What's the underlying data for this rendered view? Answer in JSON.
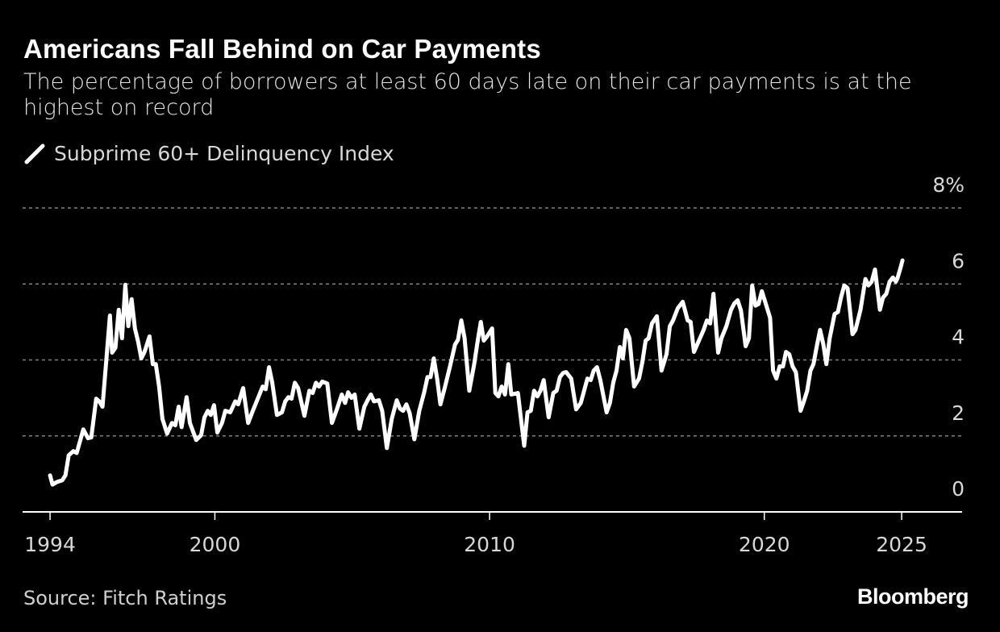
{
  "chart_data": {
    "type": "line",
    "title": "Americans Fall Behind on Car Payments",
    "subtitle": "The percentage of borrowers at least 60 days late on their car payments is at the highest on record",
    "source": "Source: Fitch Ratings",
    "logo": "Bloomberg",
    "xlabel": "",
    "ylabel": "",
    "xlim": [
      1993,
      2027.2
    ],
    "ylim": [
      0,
      8
    ],
    "x_ticks": [
      {
        "value": 1994,
        "label": "1994"
      },
      {
        "value": 2000,
        "label": "2000"
      },
      {
        "value": 2010,
        "label": "2010"
      },
      {
        "value": 2020,
        "label": "2020"
      },
      {
        "value": 2025,
        "label": "2025"
      }
    ],
    "y_ticks": [
      {
        "value": 0,
        "label": "0"
      },
      {
        "value": 2,
        "label": "2"
      },
      {
        "value": 4,
        "label": "4"
      },
      {
        "value": 6,
        "label": "6"
      },
      {
        "value": 8,
        "label": "8%"
      }
    ],
    "grid": true,
    "legend_placement": "top-left",
    "colors": {
      "background": "#000000",
      "line": "#ffffff",
      "grid": "#808080"
    },
    "series": [
      {
        "name": "Subprime 60+ Delinquency Index",
        "points": [
          [
            1994.0,
            0.96
          ],
          [
            1994.09,
            0.72
          ],
          [
            1994.26,
            0.79
          ],
          [
            1994.44,
            0.83
          ],
          [
            1994.56,
            0.96
          ],
          [
            1994.68,
            1.49
          ],
          [
            1994.85,
            1.6
          ],
          [
            1994.97,
            1.55
          ],
          [
            1995.21,
            2.17
          ],
          [
            1995.38,
            1.94
          ],
          [
            1995.5,
            1.96
          ],
          [
            1995.68,
            2.98
          ],
          [
            1995.79,
            2.91
          ],
          [
            1995.91,
            2.77
          ],
          [
            1996.03,
            3.83
          ],
          [
            1996.18,
            5.17
          ],
          [
            1996.26,
            4.19
          ],
          [
            1996.38,
            4.32
          ],
          [
            1996.5,
            5.32
          ],
          [
            1996.62,
            4.57
          ],
          [
            1996.74,
            5.98
          ],
          [
            1996.85,
            4.89
          ],
          [
            1996.97,
            5.6
          ],
          [
            1997.09,
            4.83
          ],
          [
            1997.21,
            4.47
          ],
          [
            1997.32,
            4.04
          ],
          [
            1997.44,
            4.21
          ],
          [
            1997.62,
            4.62
          ],
          [
            1997.74,
            3.89
          ],
          [
            1997.85,
            3.89
          ],
          [
            1997.97,
            3.3
          ],
          [
            1998.09,
            2.45
          ],
          [
            1998.26,
            2.06
          ],
          [
            1998.44,
            2.34
          ],
          [
            1998.56,
            2.28
          ],
          [
            1998.68,
            2.77
          ],
          [
            1998.79,
            2.23
          ],
          [
            1998.97,
            3.02
          ],
          [
            1999.09,
            2.34
          ],
          [
            1999.32,
            1.89
          ],
          [
            1999.5,
            2.02
          ],
          [
            1999.62,
            2.49
          ],
          [
            1999.74,
            2.66
          ],
          [
            1999.85,
            2.55
          ],
          [
            1999.97,
            2.81
          ],
          [
            2000.09,
            2.09
          ],
          [
            2000.26,
            2.34
          ],
          [
            2000.38,
            2.66
          ],
          [
            2000.56,
            2.62
          ],
          [
            2000.74,
            2.91
          ],
          [
            2000.85,
            2.83
          ],
          [
            2001.03,
            3.26
          ],
          [
            2001.21,
            2.34
          ],
          [
            2001.38,
            2.66
          ],
          [
            2001.5,
            2.87
          ],
          [
            2001.74,
            3.3
          ],
          [
            2001.85,
            3.23
          ],
          [
            2001.97,
            3.81
          ],
          [
            2002.09,
            3.4
          ],
          [
            2002.26,
            2.55
          ],
          [
            2002.44,
            2.62
          ],
          [
            2002.56,
            2.91
          ],
          [
            2002.68,
            3.02
          ],
          [
            2002.79,
            2.98
          ],
          [
            2002.91,
            3.4
          ],
          [
            2003.03,
            3.26
          ],
          [
            2003.26,
            2.53
          ],
          [
            2003.44,
            3.19
          ],
          [
            2003.56,
            3.13
          ],
          [
            2003.68,
            3.4
          ],
          [
            2003.79,
            3.3
          ],
          [
            2003.91,
            3.43
          ],
          [
            2004.09,
            3.38
          ],
          [
            2004.26,
            2.34
          ],
          [
            2004.44,
            2.7
          ],
          [
            2004.62,
            3.09
          ],
          [
            2004.74,
            2.87
          ],
          [
            2004.85,
            3.15
          ],
          [
            2004.97,
            3.0
          ],
          [
            2005.09,
            3.09
          ],
          [
            2005.26,
            2.19
          ],
          [
            2005.44,
            2.77
          ],
          [
            2005.56,
            2.94
          ],
          [
            2005.68,
            3.09
          ],
          [
            2005.79,
            2.91
          ],
          [
            2005.97,
            2.94
          ],
          [
            2006.09,
            2.66
          ],
          [
            2006.26,
            1.68
          ],
          [
            2006.44,
            2.45
          ],
          [
            2006.62,
            2.94
          ],
          [
            2006.74,
            2.72
          ],
          [
            2006.85,
            2.66
          ],
          [
            2006.97,
            2.83
          ],
          [
            2007.09,
            2.6
          ],
          [
            2007.26,
            1.91
          ],
          [
            2007.44,
            2.66
          ],
          [
            2007.62,
            3.15
          ],
          [
            2007.74,
            3.55
          ],
          [
            2007.85,
            3.55
          ],
          [
            2007.97,
            4.04
          ],
          [
            2008.09,
            3.51
          ],
          [
            2008.21,
            2.83
          ],
          [
            2008.38,
            3.3
          ],
          [
            2008.56,
            3.83
          ],
          [
            2008.74,
            4.4
          ],
          [
            2008.85,
            4.53
          ],
          [
            2008.97,
            5.04
          ],
          [
            2009.09,
            4.57
          ],
          [
            2009.26,
            3.19
          ],
          [
            2009.44,
            3.89
          ],
          [
            2009.56,
            4.47
          ],
          [
            2009.68,
            5.0
          ],
          [
            2009.79,
            4.51
          ],
          [
            2009.91,
            4.62
          ],
          [
            2010.09,
            4.83
          ],
          [
            2010.21,
            3.13
          ],
          [
            2010.32,
            3.04
          ],
          [
            2010.44,
            3.3
          ],
          [
            2010.56,
            3.09
          ],
          [
            2010.68,
            3.89
          ],
          [
            2010.79,
            3.09
          ],
          [
            2011.03,
            3.13
          ],
          [
            2011.26,
            1.74
          ],
          [
            2011.38,
            2.62
          ],
          [
            2011.5,
            2.66
          ],
          [
            2011.62,
            3.19
          ],
          [
            2011.74,
            3.04
          ],
          [
            2011.85,
            3.19
          ],
          [
            2011.97,
            3.47
          ],
          [
            2012.15,
            2.49
          ],
          [
            2012.32,
            3.13
          ],
          [
            2012.44,
            3.19
          ],
          [
            2012.56,
            3.55
          ],
          [
            2012.68,
            3.66
          ],
          [
            2012.79,
            3.68
          ],
          [
            2012.97,
            3.51
          ],
          [
            2013.15,
            2.7
          ],
          [
            2013.32,
            2.87
          ],
          [
            2013.44,
            3.19
          ],
          [
            2013.56,
            3.51
          ],
          [
            2013.68,
            3.47
          ],
          [
            2013.79,
            3.72
          ],
          [
            2013.91,
            3.81
          ],
          [
            2014.03,
            3.47
          ],
          [
            2014.26,
            2.62
          ],
          [
            2014.38,
            2.87
          ],
          [
            2014.5,
            3.4
          ],
          [
            2014.62,
            3.72
          ],
          [
            2014.74,
            4.34
          ],
          [
            2014.85,
            4.04
          ],
          [
            2014.97,
            4.79
          ],
          [
            2015.09,
            4.57
          ],
          [
            2015.26,
            3.3
          ],
          [
            2015.44,
            3.51
          ],
          [
            2015.56,
            3.94
          ],
          [
            2015.68,
            4.51
          ],
          [
            2015.79,
            4.57
          ],
          [
            2015.91,
            4.96
          ],
          [
            2016.09,
            5.15
          ],
          [
            2016.26,
            3.72
          ],
          [
            2016.44,
            4.15
          ],
          [
            2016.56,
            4.89
          ],
          [
            2016.68,
            5.04
          ],
          [
            2016.85,
            5.36
          ],
          [
            2017.03,
            5.53
          ],
          [
            2017.21,
            5.04
          ],
          [
            2017.32,
            5.0
          ],
          [
            2017.44,
            4.21
          ],
          [
            2017.62,
            4.51
          ],
          [
            2017.79,
            4.79
          ],
          [
            2017.91,
            5.04
          ],
          [
            2018.03,
            4.96
          ],
          [
            2018.15,
            5.74
          ],
          [
            2018.32,
            4.19
          ],
          [
            2018.44,
            4.57
          ],
          [
            2018.62,
            4.89
          ],
          [
            2018.79,
            5.32
          ],
          [
            2018.91,
            5.49
          ],
          [
            2019.03,
            5.57
          ],
          [
            2019.15,
            5.3
          ],
          [
            2019.32,
            4.36
          ],
          [
            2019.44,
            4.57
          ],
          [
            2019.56,
            5.96
          ],
          [
            2019.68,
            5.43
          ],
          [
            2019.79,
            5.47
          ],
          [
            2019.91,
            5.81
          ],
          [
            2020.03,
            5.53
          ],
          [
            2020.21,
            5.11
          ],
          [
            2020.32,
            3.72
          ],
          [
            2020.44,
            3.51
          ],
          [
            2020.56,
            3.83
          ],
          [
            2020.68,
            3.83
          ],
          [
            2020.79,
            4.21
          ],
          [
            2020.91,
            4.15
          ],
          [
            2021.03,
            3.83
          ],
          [
            2021.15,
            3.68
          ],
          [
            2021.32,
            2.66
          ],
          [
            2021.44,
            2.91
          ],
          [
            2021.56,
            3.19
          ],
          [
            2021.68,
            3.72
          ],
          [
            2021.79,
            3.89
          ],
          [
            2021.91,
            4.36
          ],
          [
            2022.03,
            4.79
          ],
          [
            2022.15,
            4.4
          ],
          [
            2022.26,
            3.89
          ],
          [
            2022.38,
            4.57
          ],
          [
            2022.56,
            5.21
          ],
          [
            2022.68,
            5.26
          ],
          [
            2022.79,
            5.64
          ],
          [
            2022.91,
            5.96
          ],
          [
            2023.03,
            5.89
          ],
          [
            2023.21,
            4.68
          ],
          [
            2023.32,
            4.79
          ],
          [
            2023.5,
            5.32
          ],
          [
            2023.62,
            5.85
          ],
          [
            2023.68,
            6.13
          ],
          [
            2023.79,
            5.96
          ],
          [
            2023.91,
            6.06
          ],
          [
            2024.03,
            6.38
          ],
          [
            2024.21,
            5.32
          ],
          [
            2024.32,
            5.64
          ],
          [
            2024.44,
            5.74
          ],
          [
            2024.56,
            6.06
          ],
          [
            2024.68,
            6.17
          ],
          [
            2024.79,
            6.06
          ],
          [
            2024.85,
            6.15
          ],
          [
            2024.97,
            6.45
          ],
          [
            2025.03,
            6.62
          ]
        ]
      }
    ]
  }
}
